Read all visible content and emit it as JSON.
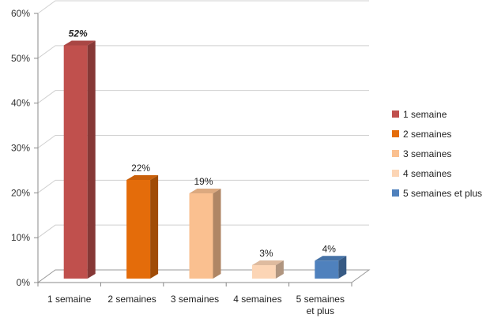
{
  "chart_data": {
    "type": "bar",
    "categories": [
      "1 semaine",
      "2 semaines",
      "3 semaines",
      "4 semaines",
      "5 semaines et plus"
    ],
    "category_lines": [
      [
        "1 semaine"
      ],
      [
        "2 semaines"
      ],
      [
        "3 semaines"
      ],
      [
        "4 semaines"
      ],
      [
        "5 semaines",
        "et plus"
      ]
    ],
    "values": [
      52,
      22,
      19,
      3,
      4
    ],
    "data_labels": [
      "52%",
      "22%",
      "19%",
      "3%",
      "4%"
    ],
    "ylim": [
      0,
      60
    ],
    "yticks": [
      "0%",
      "10%",
      "20%",
      "30%",
      "40%",
      "50%",
      "60%"
    ],
    "grid": true,
    "legend_position": "right",
    "legend": [
      "1 semaine",
      "2 semaines",
      "3 semaines",
      "4 semaines",
      "5 semaines et plus"
    ],
    "colors": [
      "#C0504D",
      "#E46C0A",
      "#FAC090",
      "#FCD5B5",
      "#4F81BD"
    ]
  }
}
